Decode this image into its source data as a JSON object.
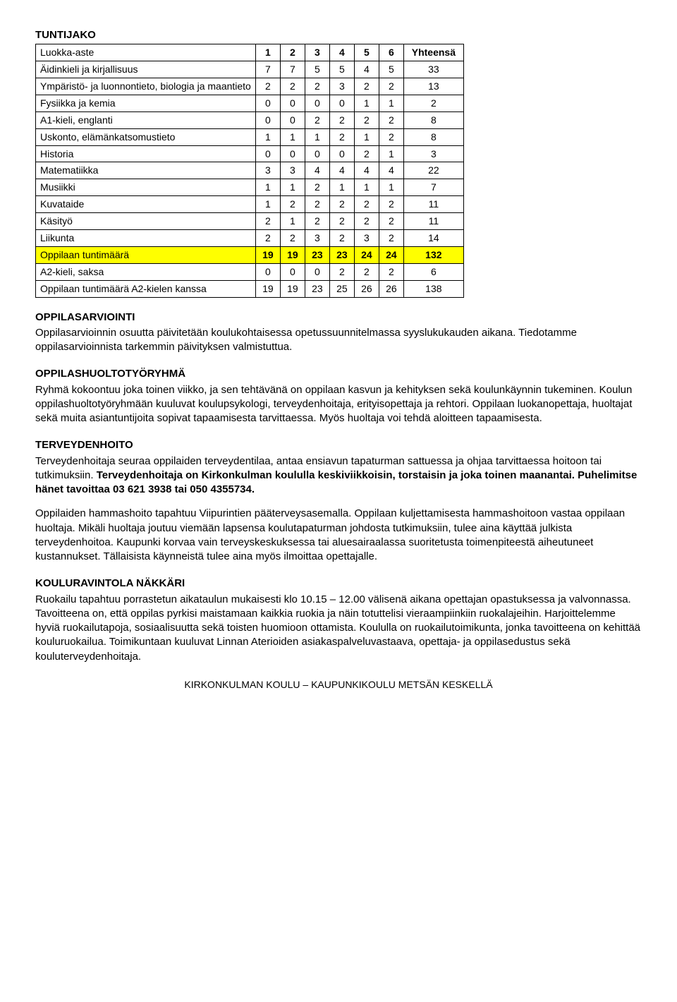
{
  "sections": {
    "tuntijako": "TUNTIJAKO",
    "oppilasarviointi": "OPPILASARVIOINTI",
    "oppilashuolto": "OPPILASHUOLTOTYÖRYHMÄ",
    "terveydenhoito": "TERVEYDENHOITO",
    "ravintola": "KOULURAVINTOLA NÄKKÄRI"
  },
  "table": {
    "header": {
      "label": "Luokka-aste",
      "c1": "1",
      "c2": "2",
      "c3": "3",
      "c4": "4",
      "c5": "5",
      "c6": "6",
      "total": "Yhteensä"
    },
    "rows": [
      {
        "label": "Äidinkieli ja kirjallisuus",
        "v": [
          "7",
          "7",
          "5",
          "5",
          "4",
          "5",
          "33"
        ]
      },
      {
        "label": "Ympäristö- ja luonnontieto, biologia ja maantieto",
        "v": [
          "2",
          "2",
          "2",
          "3",
          "2",
          "2",
          "13"
        ]
      },
      {
        "label": "Fysiikka ja kemia",
        "v": [
          "0",
          "0",
          "0",
          "0",
          "1",
          "1",
          "2"
        ]
      },
      {
        "label": "A1-kieli, englanti",
        "v": [
          "0",
          "0",
          "2",
          "2",
          "2",
          "2",
          "8"
        ]
      },
      {
        "label": "Uskonto, elämänkatsomustieto",
        "v": [
          "1",
          "1",
          "1",
          "2",
          "1",
          "2",
          "8"
        ]
      },
      {
        "label": "Historia",
        "v": [
          "0",
          "0",
          "0",
          "0",
          "2",
          "1",
          "3"
        ]
      },
      {
        "label": "Matematiikka",
        "v": [
          "3",
          "3",
          "4",
          "4",
          "4",
          "4",
          "22"
        ]
      },
      {
        "label": "Musiikki",
        "v": [
          "1",
          "1",
          "2",
          "1",
          "1",
          "1",
          "7"
        ]
      },
      {
        "label": "Kuvataide",
        "v": [
          "1",
          "2",
          "2",
          "2",
          "2",
          "2",
          "11"
        ]
      },
      {
        "label": "Käsityö",
        "v": [
          "2",
          "1",
          "2",
          "2",
          "2",
          "2",
          "11"
        ]
      },
      {
        "label": "Liikunta",
        "v": [
          "2",
          "2",
          "3",
          "2",
          "3",
          "2",
          "14"
        ]
      }
    ],
    "highlight": {
      "label": "Oppilaan tuntimäärä",
      "v": [
        "19",
        "19",
        "23",
        "23",
        "24",
        "24",
        "132"
      ]
    },
    "tail": [
      {
        "label": "A2-kieli, saksa",
        "v": [
          "0",
          "0",
          "0",
          "2",
          "2",
          "2",
          "6"
        ]
      },
      {
        "label": "Oppilaan tuntimäärä A2-kielen kanssa",
        "v": [
          "19",
          "19",
          "23",
          "25",
          "26",
          "26",
          "138"
        ]
      }
    ]
  },
  "oppilasarviointi_text": "Oppilasarvioinnin osuutta päivitetään koulukohtaisessa opetussuunnitelmassa syyslukukauden aikana. Tiedotamme oppilasarvioinnista tarkemmin päivityksen valmistuttua.",
  "oppilashuolto_text": "Ryhmä kokoontuu joka toinen viikko, ja sen tehtävänä on oppilaan kasvun ja kehityksen sekä koulunkäynnin tukeminen. Koulun oppilashuoltotyöryhmään kuuluvat koulupsykologi, terveydenhoitaja, erityisopettaja ja rehtori. Oppilaan luokanopettaja, huoltajat sekä muita asiantuntijoita sopivat tapaamisesta tarvittaessa. Myös huoltaja voi tehdä aloitteen tapaamisesta.",
  "terveys": {
    "p1a": "Terveydenhoitaja seuraa oppilaiden terveydentilaa, antaa ensiavun tapaturman sattuessa ja ohjaa tarvittaessa hoitoon tai tutkimuksiin. ",
    "p1b": "Terveydenhoitaja on Kirkonkulman koululla keskiviikkoisin, torstaisin ja joka toinen maanantai. Puhelimitse hänet tavoittaa 03 621 3938 tai 050 4355734.",
    "p2": "Oppilaiden hammashoito tapahtuu Viipurintien pääterveysasemalla. Oppilaan kuljettamisesta hammashoitoon vastaa oppilaan huoltaja. Mikäli huoltaja joutuu viemään lapsensa koulutapaturman johdosta tutkimuksiin, tulee aina käyttää julkista terveydenhoitoa. Kaupunki korvaa vain terveyskeskuksessa tai aluesairaalassa suoritetusta toimenpiteestä aiheutuneet kustannukset. Tällaisista käynneistä tulee aina myös ilmoittaa opettajalle."
  },
  "ravintola_text": "Ruokailu tapahtuu porrastetun aikataulun mukaisesti klo 10.15 – 12.00 välisenä aikana opettajan opastuksessa ja valvonnassa. Tavoitteena on, että oppilas pyrkisi maistamaan kaikkia ruokia ja näin totuttelisi vieraampiinkiin ruokalajeihin. Harjoittelemme hyviä ruokailutapoja, sosiaalisuutta sekä toisten huomioon ottamista. Koululla on ruokailutoimikunta, jonka tavoitteena on kehittää kouluruokailua. Toimikuntaan kuuluvat Linnan Aterioiden asiakaspalveluvastaava, opettaja- ja oppilasedustus sekä kouluterveydenhoitaja.",
  "footer": "KIRKONKULMAN KOULU – KAUPUNKIKOULU METSÄN KESKELLÄ"
}
